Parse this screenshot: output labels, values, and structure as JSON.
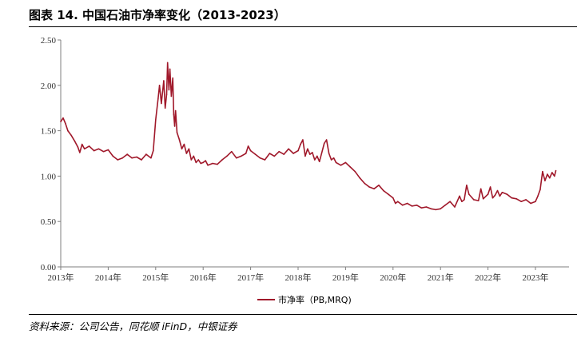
{
  "title": "图表 14. 中国石油市净率变化（2013-2023）",
  "source": "资料来源：公司公告，同花顺 iFinD，中银证券",
  "colors": {
    "series": "#a0182a",
    "axis": "#7f7f7f",
    "text": "#000000"
  },
  "chart_data": {
    "type": "line",
    "title": "图表 14. 中国石油市净率变化（2013-2023）",
    "xlabel": "",
    "ylabel": "",
    "xlim": [
      2013.0,
      2023.45
    ],
    "ylim": [
      0,
      2.5
    ],
    "yticks": [
      "0.00",
      "0.50",
      "1.00",
      "1.50",
      "2.00",
      "2.50"
    ],
    "xticks": [
      {
        "x": 2013,
        "label": "2013年"
      },
      {
        "x": 2014,
        "label": "2014年"
      },
      {
        "x": 2015,
        "label": "2015年"
      },
      {
        "x": 2016,
        "label": "2016年"
      },
      {
        "x": 2017,
        "label": "2017年"
      },
      {
        "x": 2018,
        "label": "2018年"
      },
      {
        "x": 2019,
        "label": "2019年"
      },
      {
        "x": 2020,
        "label": "2020年"
      },
      {
        "x": 2021,
        "label": "2021年"
      },
      {
        "x": 2022,
        "label": "2022年"
      },
      {
        "x": 2023,
        "label": "2023年"
      }
    ],
    "grid": false,
    "legend": "bottom-center",
    "series": [
      {
        "name": "市净率（PB,MRQ)",
        "x": [
          2013.0,
          2013.05,
          2013.1,
          2013.15,
          2013.22,
          2013.3,
          2013.36,
          2013.4,
          2013.45,
          2013.5,
          2013.6,
          2013.7,
          2013.8,
          2013.9,
          2014.0,
          2014.1,
          2014.2,
          2014.3,
          2014.4,
          2014.5,
          2014.6,
          2014.7,
          2014.8,
          2014.9,
          2014.95,
          2015.0,
          2015.05,
          2015.08,
          2015.12,
          2015.17,
          2015.2,
          2015.23,
          2015.25,
          2015.28,
          2015.3,
          2015.33,
          2015.36,
          2015.38,
          2015.4,
          2015.42,
          2015.45,
          2015.5,
          2015.55,
          2015.6,
          2015.65,
          2015.7,
          2015.75,
          2015.8,
          2015.85,
          2015.9,
          2015.95,
          2016.0,
          2016.05,
          2016.1,
          2016.2,
          2016.3,
          2016.4,
          2016.5,
          2016.6,
          2016.7,
          2016.8,
          2016.9,
          2016.95,
          2017.0,
          2017.1,
          2017.2,
          2017.3,
          2017.4,
          2017.5,
          2017.6,
          2017.7,
          2017.8,
          2017.9,
          2018.0,
          2018.05,
          2018.1,
          2018.15,
          2018.2,
          2018.25,
          2018.3,
          2018.35,
          2018.4,
          2018.45,
          2018.5,
          2018.55,
          2018.6,
          2018.65,
          2018.7,
          2018.75,
          2018.8,
          2018.9,
          2019.0,
          2019.1,
          2019.2,
          2019.3,
          2019.4,
          2019.5,
          2019.6,
          2019.7,
          2019.8,
          2019.9,
          2020.0,
          2020.05,
          2020.1,
          2020.2,
          2020.3,
          2020.4,
          2020.5,
          2020.6,
          2020.7,
          2020.8,
          2020.9,
          2021.0,
          2021.1,
          2021.2,
          2021.3,
          2021.4,
          2021.45,
          2021.5,
          2021.55,
          2021.6,
          2021.7,
          2021.8,
          2021.85,
          2021.9,
          2022.0,
          2022.05,
          2022.1,
          2022.15,
          2022.2,
          2022.25,
          2022.3,
          2022.4,
          2022.5,
          2022.6,
          2022.7,
          2022.8,
          2022.9,
          2023.0,
          2023.05,
          2023.1,
          2023.15,
          2023.2,
          2023.25,
          2023.3,
          2023.35,
          2023.4,
          2023.43
        ],
        "y": [
          1.6,
          1.64,
          1.58,
          1.5,
          1.45,
          1.38,
          1.32,
          1.26,
          1.35,
          1.3,
          1.33,
          1.28,
          1.3,
          1.27,
          1.29,
          1.22,
          1.18,
          1.2,
          1.24,
          1.2,
          1.21,
          1.18,
          1.24,
          1.2,
          1.28,
          1.62,
          1.85,
          2.0,
          1.8,
          2.05,
          1.75,
          1.9,
          2.25,
          1.95,
          2.18,
          1.88,
          2.08,
          1.68,
          1.55,
          1.72,
          1.48,
          1.4,
          1.3,
          1.35,
          1.25,
          1.3,
          1.18,
          1.22,
          1.15,
          1.18,
          1.14,
          1.15,
          1.17,
          1.12,
          1.14,
          1.13,
          1.18,
          1.22,
          1.27,
          1.2,
          1.22,
          1.25,
          1.33,
          1.28,
          1.24,
          1.2,
          1.18,
          1.25,
          1.22,
          1.27,
          1.24,
          1.3,
          1.25,
          1.28,
          1.35,
          1.4,
          1.22,
          1.3,
          1.24,
          1.26,
          1.18,
          1.22,
          1.16,
          1.26,
          1.36,
          1.4,
          1.25,
          1.18,
          1.2,
          1.15,
          1.12,
          1.15,
          1.1,
          1.05,
          0.98,
          0.92,
          0.88,
          0.86,
          0.9,
          0.84,
          0.8,
          0.76,
          0.7,
          0.72,
          0.68,
          0.7,
          0.67,
          0.68,
          0.65,
          0.66,
          0.64,
          0.63,
          0.64,
          0.68,
          0.72,
          0.66,
          0.78,
          0.72,
          0.74,
          0.9,
          0.8,
          0.74,
          0.73,
          0.86,
          0.75,
          0.8,
          0.88,
          0.76,
          0.79,
          0.84,
          0.78,
          0.82,
          0.8,
          0.76,
          0.75,
          0.72,
          0.74,
          0.7,
          0.72,
          0.78,
          0.85,
          1.05,
          0.95,
          1.02,
          0.98,
          1.04,
          1.0,
          1.06
        ]
      }
    ]
  }
}
